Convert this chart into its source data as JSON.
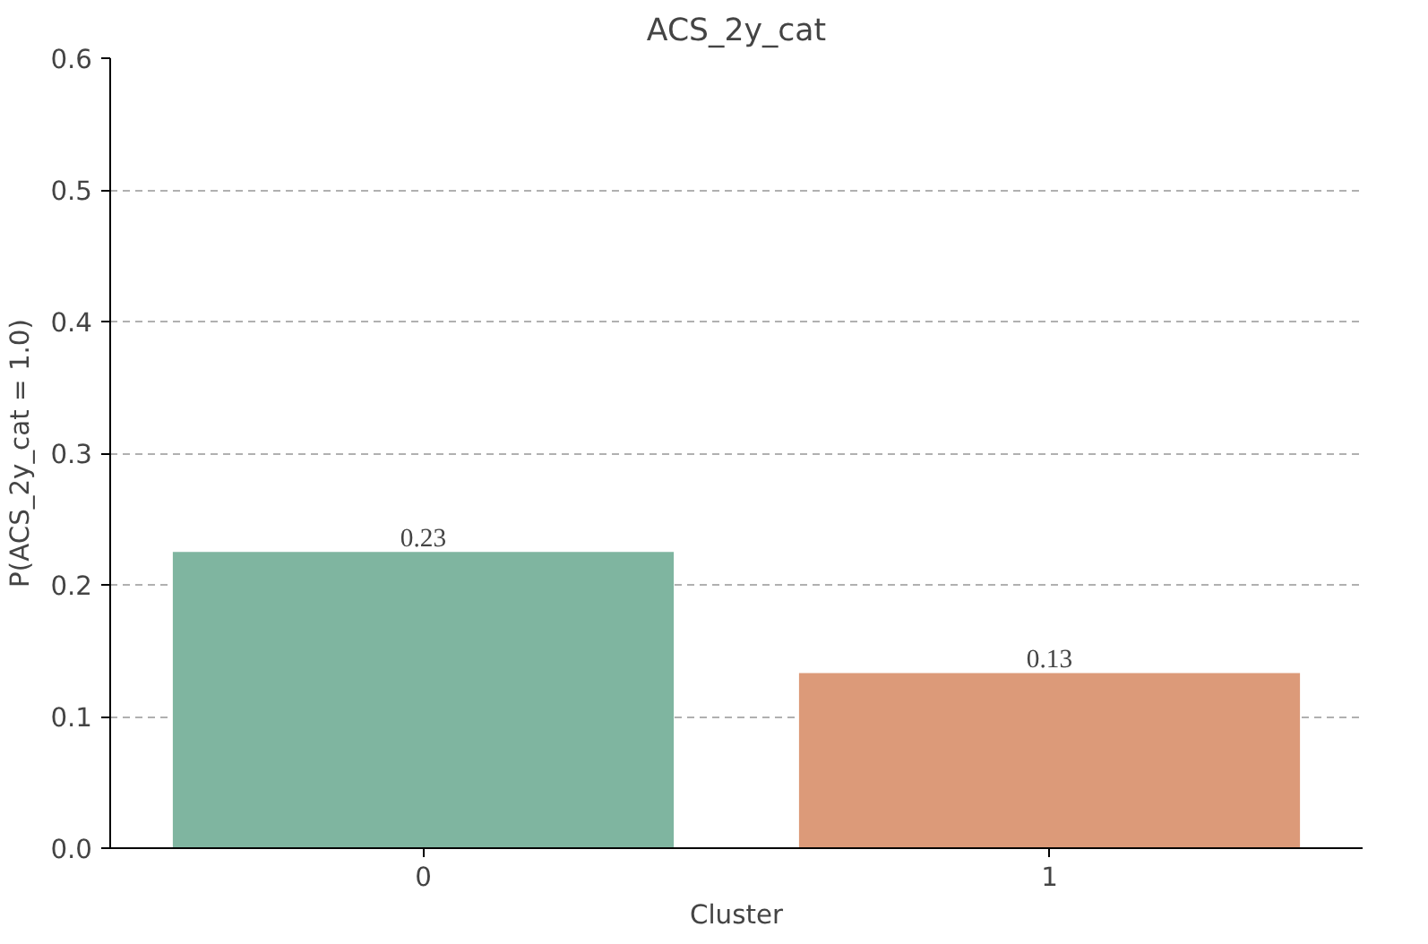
{
  "chart_data": {
    "type": "bar",
    "title": "ACS_2y_cat",
    "xlabel": "Cluster",
    "ylabel": "P(ACS_2y_cat = 1.0)",
    "categories": [
      "0",
      "1"
    ],
    "values": [
      0.225,
      0.133
    ],
    "colors": [
      "#7fb5a0",
      "#dc9a79"
    ],
    "value_labels": [
      "0.23",
      "0.13"
    ],
    "ylim": [
      0,
      0.6
    ],
    "yticks": [
      {
        "value": 0,
        "label": "0.0"
      },
      {
        "value": 0.1,
        "label": "0.1"
      },
      {
        "value": 0.2,
        "label": "0.2"
      },
      {
        "value": 0.3,
        "label": "0.3"
      },
      {
        "value": 0.4,
        "label": "0.4"
      },
      {
        "value": 0.5,
        "label": "0.5"
      },
      {
        "value": 0.6,
        "label": "0.6"
      }
    ],
    "grid": "y"
  }
}
